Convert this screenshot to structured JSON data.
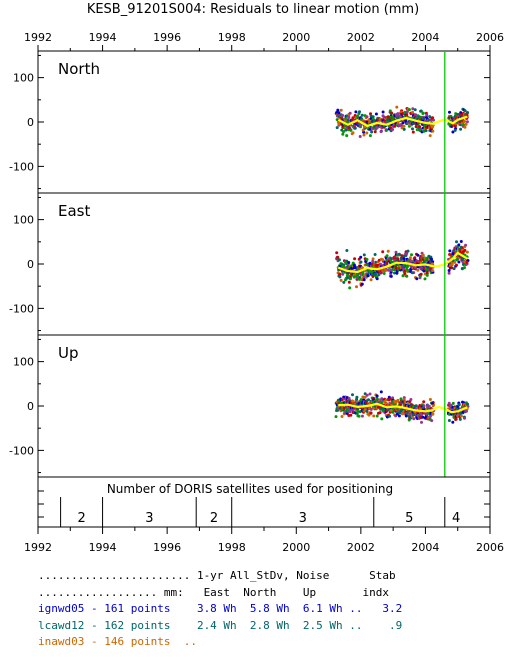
{
  "title": "KESB_91201S004: Residuals to linear motion (mm)",
  "colors": {
    "ignwd05": "#0000cc",
    "lcawd12": "#006666",
    "inawd03": "#cc6600",
    "extra1": "#cc0000",
    "extra2": "#993399",
    "extra3": "#009900",
    "smooth": "#ffff00",
    "discontinuity": "#00cc00"
  },
  "chart_data": {
    "type": "scatter",
    "title": "KESB_91201S004: Residuals to linear motion (mm)",
    "xlim": [
      1992,
      2006
    ],
    "xticks": [
      1992,
      1994,
      1996,
      1998,
      2000,
      2002,
      2004,
      2006
    ],
    "discontinuity_epoch": 2004.6,
    "panels": [
      {
        "name": "North",
        "ylim": [
          -160,
          160
        ],
        "yticks": [
          100,
          0,
          -100
        ],
        "data_range": [
          2001.25,
          2005.3
        ],
        "scatter": 18,
        "smooth": [
          [
            2001.3,
            5
          ],
          [
            2001.6,
            -6
          ],
          [
            2001.9,
            4
          ],
          [
            2002.2,
            -9
          ],
          [
            2002.5,
            -2
          ],
          [
            2002.8,
            -6
          ],
          [
            2003.1,
            3
          ],
          [
            2003.4,
            9
          ],
          [
            2003.7,
            3
          ],
          [
            2004.0,
            -2
          ],
          [
            2004.25,
            -4
          ],
          [
            2004.4,
            1
          ],
          [
            2004.6,
            6
          ],
          [
            2004.85,
            -3
          ],
          [
            2005.0,
            5
          ],
          [
            2005.3,
            12
          ]
        ]
      },
      {
        "name": "East",
        "ylim": [
          -160,
          160
        ],
        "yticks": [
          100,
          0,
          -100
        ],
        "data_range": [
          2001.25,
          2005.3
        ],
        "scatter": 22,
        "smooth": [
          [
            2001.3,
            -8
          ],
          [
            2001.6,
            -16
          ],
          [
            2001.9,
            -18
          ],
          [
            2002.2,
            -9
          ],
          [
            2002.5,
            -12
          ],
          [
            2002.8,
            -6
          ],
          [
            2003.1,
            3
          ],
          [
            2003.4,
            2
          ],
          [
            2003.7,
            -3
          ],
          [
            2004.0,
            -1
          ],
          [
            2004.3,
            -6
          ],
          [
            2004.6,
            -1
          ],
          [
            2004.85,
            12
          ],
          [
            2005.0,
            25
          ],
          [
            2005.3,
            12
          ]
        ]
      },
      {
        "name": "Up",
        "ylim": [
          -160,
          160
        ],
        "yticks": [
          100,
          0,
          -100
        ],
        "data_range": [
          2001.25,
          2005.3
        ],
        "scatter": 18,
        "smooth": [
          [
            2001.3,
            2
          ],
          [
            2001.6,
            3
          ],
          [
            2001.9,
            -2
          ],
          [
            2002.2,
            0
          ],
          [
            2002.5,
            5
          ],
          [
            2002.8,
            -3
          ],
          [
            2003.1,
            -1
          ],
          [
            2003.4,
            -5
          ],
          [
            2003.7,
            -10
          ],
          [
            2004.0,
            -12
          ],
          [
            2004.2,
            -10
          ],
          [
            2004.4,
            -2
          ],
          [
            2004.6,
            -6
          ],
          [
            2004.8,
            -14
          ],
          [
            2005.0,
            -12
          ],
          [
            2005.3,
            -3
          ]
        ]
      }
    ],
    "satellites": {
      "label": "Number of DORIS satellites used for positioning",
      "dividers": [
        1992.7,
        1994.0,
        1996.9,
        1998.0,
        2002.4,
        2004.6
      ],
      "segments": [
        {
          "x": 1993.35,
          "count": "2"
        },
        {
          "x": 1995.45,
          "count": "3"
        },
        {
          "x": 1997.45,
          "count": "2"
        },
        {
          "x": 2000.2,
          "count": "3"
        },
        {
          "x": 2003.5,
          "count": "5"
        },
        {
          "x": 2004.95,
          "count": "4"
        }
      ]
    }
  },
  "stats": {
    "line1": "....................... 1-yr All_StDv, Noise      Stab",
    "line2": ".................. mm:   East  North    Up       indx",
    "rows": [
      {
        "text": "ignwd05 - 161 points    3.8 Wh  5.8 Wh  6.1 Wh ..   3.2",
        "key": "ignwd05"
      },
      {
        "text": "lcawd12 - 162 points    2.4 Wh  2.8 Wh  2.5 Wh ..    .9",
        "key": "lcawd12"
      },
      {
        "text": "inawd03 - 146 points  ..",
        "key": "inawd03"
      }
    ]
  }
}
